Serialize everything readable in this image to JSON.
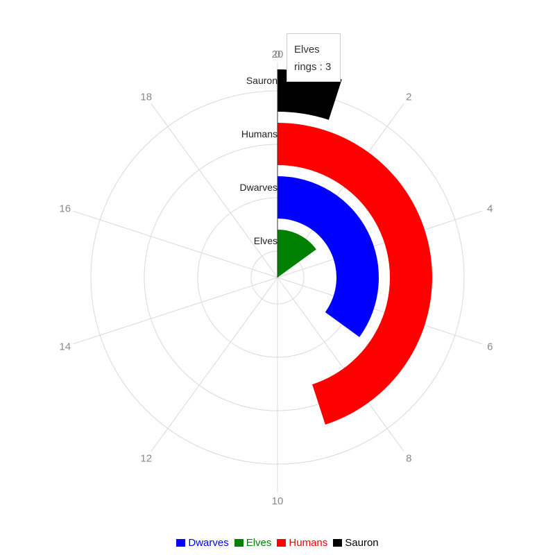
{
  "chart_data": {
    "type": "polar-bar",
    "angle_axis": {
      "min": 0,
      "max": 20,
      "ticks": [
        0,
        2,
        4,
        6,
        8,
        10,
        12,
        14,
        16,
        18,
        20
      ]
    },
    "categories": [
      "Elves",
      "Dwarves",
      "Humans",
      "Sauron"
    ],
    "series": [
      {
        "name": "Dwarves",
        "category": "Dwarves",
        "value": 7,
        "color": "#0000ff"
      },
      {
        "name": "Elves",
        "category": "Elves",
        "value": 3,
        "color": "#008000"
      },
      {
        "name": "Humans",
        "category": "Humans",
        "value": 9,
        "color": "#ff0000"
      },
      {
        "name": "Sauron",
        "category": "Sauron",
        "value": 1,
        "color": "#000000"
      }
    ],
    "legend_position": "bottom",
    "grid": true
  },
  "tooltip": {
    "category": "Elves",
    "text": "rings : 3"
  }
}
